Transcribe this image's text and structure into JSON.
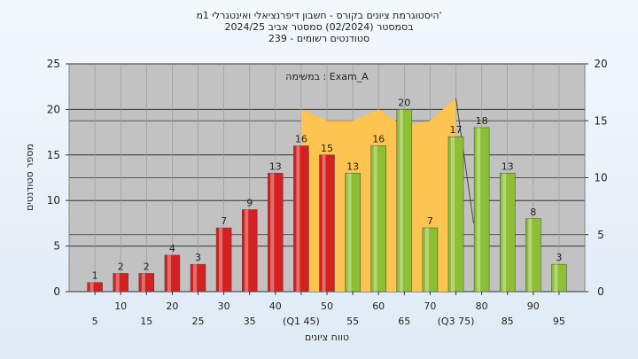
{
  "chart_data": {
    "type": "bar",
    "title_lines": [
      "היסטוגרמת ציונים בקורס - חשבון דיפרנציאלי ואינטגרלי 1מ'",
      "בסמסטר   (02/2024)  סמסטר אביב 2024/25",
      "239 - סטודנטים רשומים"
    ],
    "annotation": "במשימה : Exam_A",
    "xlabel": "טווח ציונים",
    "ylabel": "מספר סטודנטים",
    "ylim": [
      0,
      25
    ],
    "y_ticks": [
      0,
      5,
      10,
      15,
      20,
      25
    ],
    "y2lim": [
      0,
      20
    ],
    "y2_ticks": [
      0,
      5,
      10,
      15,
      20
    ],
    "categories": [
      "5",
      "10",
      "15",
      "20",
      "25",
      "30",
      "35",
      "40",
      "(Q1 45)",
      "50",
      "55",
      "60",
      "65",
      "70",
      "(Q3 75)",
      "80",
      "85",
      "90",
      "95"
    ],
    "values": [
      1,
      2,
      2,
      4,
      3,
      7,
      9,
      13,
      16,
      15,
      13,
      16,
      20,
      7,
      17,
      18,
      13,
      8,
      3
    ],
    "data_labels": [
      "1",
      "2",
      "2",
      "4",
      "3",
      "7",
      "9",
      "13",
      "16",
      "15",
      "13",
      "16",
      "20",
      "7",
      "17",
      "18",
      "13",
      "8",
      "3"
    ],
    "bar_colors": [
      "red",
      "red",
      "red",
      "red",
      "red",
      "red",
      "red",
      "red",
      "red",
      "red",
      "green",
      "green",
      "green",
      "green",
      "green",
      "green",
      "green",
      "green",
      "green"
    ],
    "area_series": {
      "right_axis": true,
      "x": [
        45,
        50,
        55,
        60,
        65,
        70,
        75
      ],
      "values": [
        16,
        15,
        15,
        16,
        14.5,
        15,
        17
      ]
    },
    "colors": {
      "red_bar": "#d42020",
      "green_bar": "#8cbf34",
      "area_fill": "#fdc450",
      "plot_bg": "#c2c2c2"
    },
    "grid": true
  }
}
